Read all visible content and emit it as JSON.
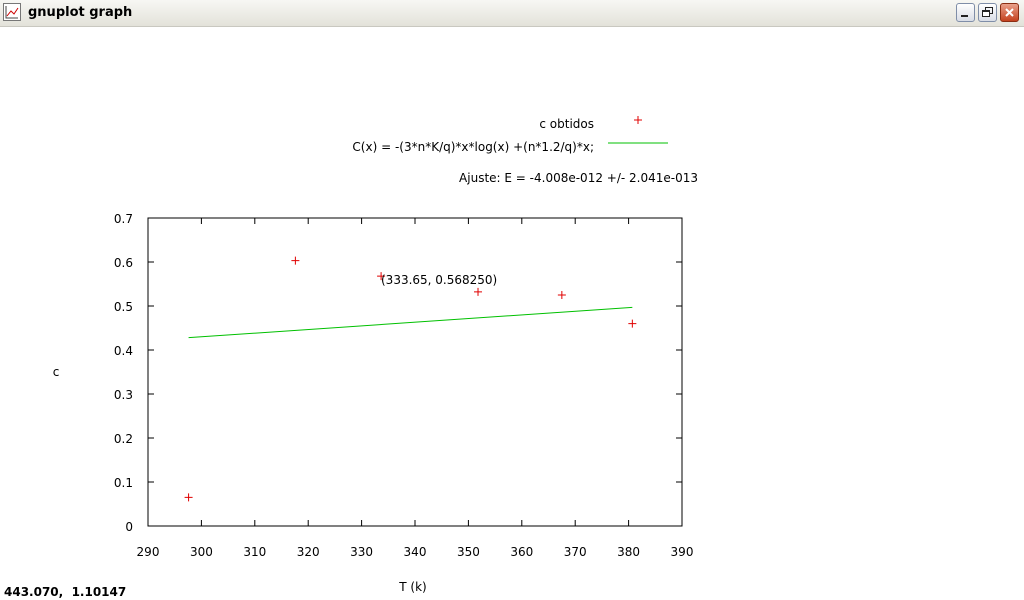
{
  "window": {
    "title": "gnuplot graph",
    "app_icon": "gnuplot-chart-icon",
    "buttons": [
      "minimize-icon",
      "restore-icon",
      "close-icon"
    ],
    "close_color": "#c4421f"
  },
  "status_bar": {
    "coordinates": "443.070,  1.10147"
  },
  "chart_data": {
    "type": "scatter",
    "xlabel": "T (k)",
    "ylabel": "c",
    "xlim": [
      290,
      390
    ],
    "ylim": [
      0,
      0.7
    ],
    "xticks": [
      "290",
      "300",
      "310",
      "320",
      "330",
      "340",
      "350",
      "360",
      "370",
      "380",
      "390"
    ],
    "yticks": [
      "0",
      "0.1",
      "0.2",
      "0.3",
      "0.4",
      "0.5",
      "0.6",
      "0.7"
    ],
    "series": [
      {
        "name": "c obtidos",
        "style": "points",
        "marker": "+",
        "color": "#e00000",
        "x": [
          297.6,
          317.6,
          333.65,
          351.8,
          367.5,
          380.7
        ],
        "y": [
          0.065,
          0.603,
          0.568,
          0.532,
          0.525,
          0.46
        ]
      },
      {
        "name": "C(x) = -(3*n*K/q)*x*log(x) +(n*1.2/q)*x;",
        "style": "line",
        "color": "#00c000",
        "x": [
          297.6,
          380.7
        ],
        "y": [
          0.428,
          0.497
        ]
      }
    ],
    "fit_text": "Ajuste: E =  -4.008e-012 +/- 2.041e-013",
    "annotation": {
      "text": "(333.65, 0.568250)",
      "x": 333.65,
      "y": 0.56825
    },
    "legend_position": "top-right",
    "grid": false
  }
}
